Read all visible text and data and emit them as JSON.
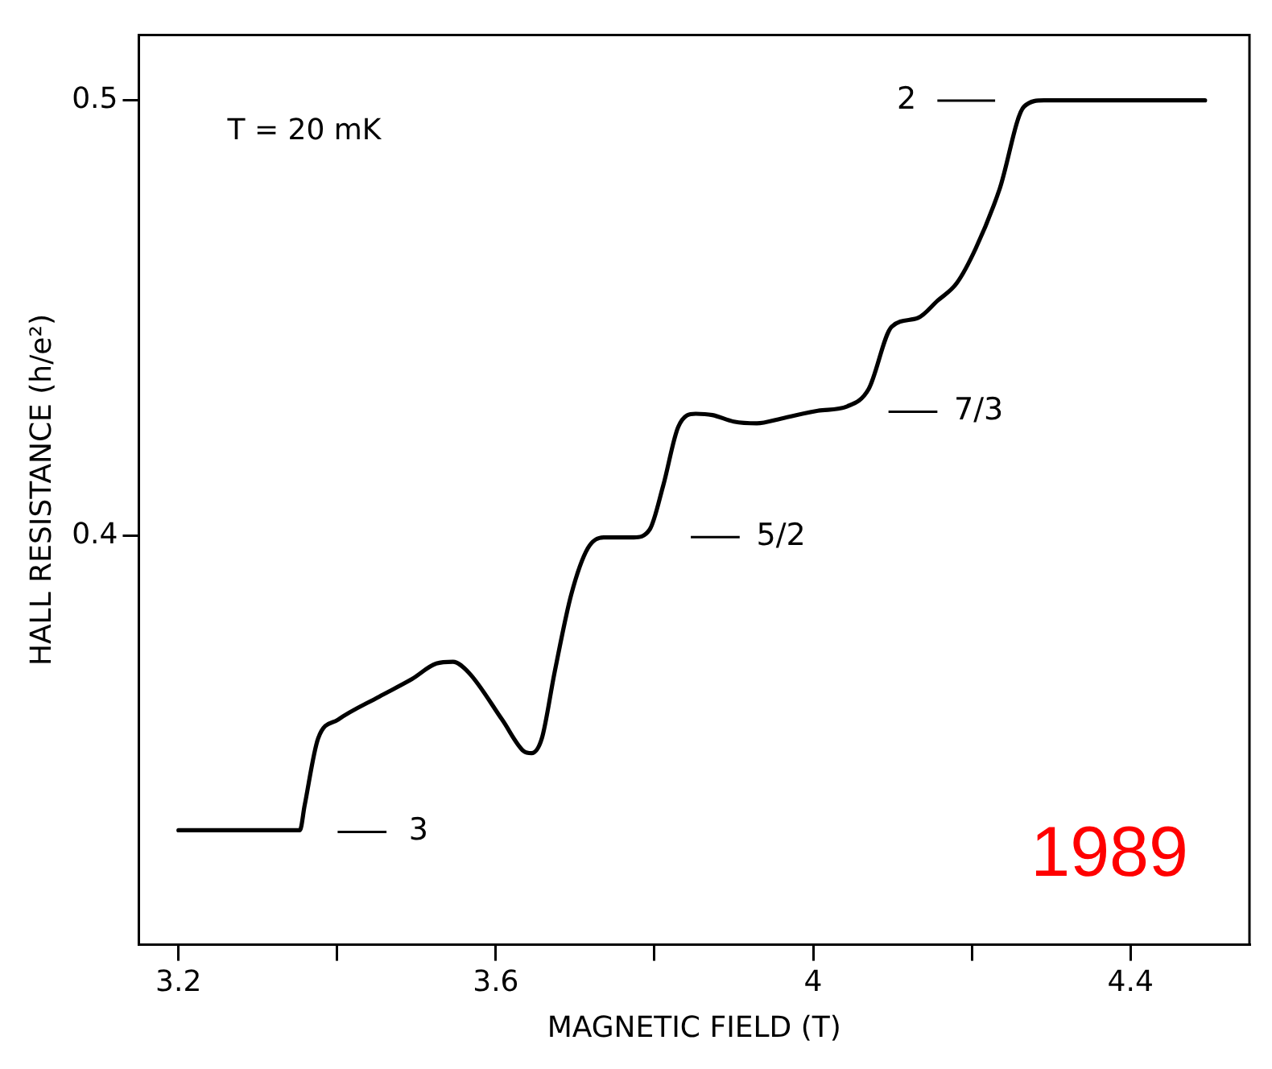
{
  "chart_data": {
    "type": "line",
    "xlabel": "MAGNETIC FIELD (T)",
    "ylabel": "HALL RESISTANCE (h/e²)",
    "x": [
      3.2,
      3.353,
      3.359,
      3.376,
      3.401,
      3.453,
      3.494,
      3.525,
      3.546,
      3.566,
      3.608,
      3.635,
      3.645,
      3.658,
      3.674,
      3.695,
      3.716,
      3.736,
      3.774,
      3.794,
      3.811,
      3.83,
      3.852,
      3.873,
      3.9,
      3.929,
      3.96,
      4.006,
      4.043,
      4.07,
      4.099,
      4.132,
      4.157,
      4.181,
      4.205,
      4.235,
      4.266,
      4.291,
      4.494
    ],
    "series": [
      {
        "color": "#000000",
        "values": [
          0.3323,
          0.3323,
          0.338,
          0.3534,
          0.3577,
          0.363,
          0.367,
          0.3706,
          0.371,
          0.3685,
          0.3577,
          0.3505,
          0.35,
          0.3534,
          0.3685,
          0.3864,
          0.3971,
          0.3996,
          0.3996,
          0.4014,
          0.4115,
          0.425,
          0.428,
          0.4277,
          0.4262,
          0.4258,
          0.4269,
          0.4287,
          0.4297,
          0.4337,
          0.448,
          0.45,
          0.454,
          0.458,
          0.466,
          0.4796,
          0.4986,
          0.5,
          0.5
        ]
      }
    ],
    "xlim": [
      3.15,
      4.55
    ],
    "ylim": [
      0.306,
      0.515
    ],
    "xticks": [
      3.2,
      {
        "value": 3.4,
        "label": null
      },
      3.6,
      {
        "value": 3.8,
        "label": null
      },
      4,
      {
        "value": 4.2,
        "label": null
      },
      4.4
    ],
    "yticks": [
      0.4,
      0.5
    ],
    "grid": false,
    "legend": false,
    "marker": "none",
    "line_style": "solid",
    "annotations": [
      "T = 20 mK",
      "1989",
      "3",
      "5/2",
      "7/3",
      "2"
    ]
  }
}
